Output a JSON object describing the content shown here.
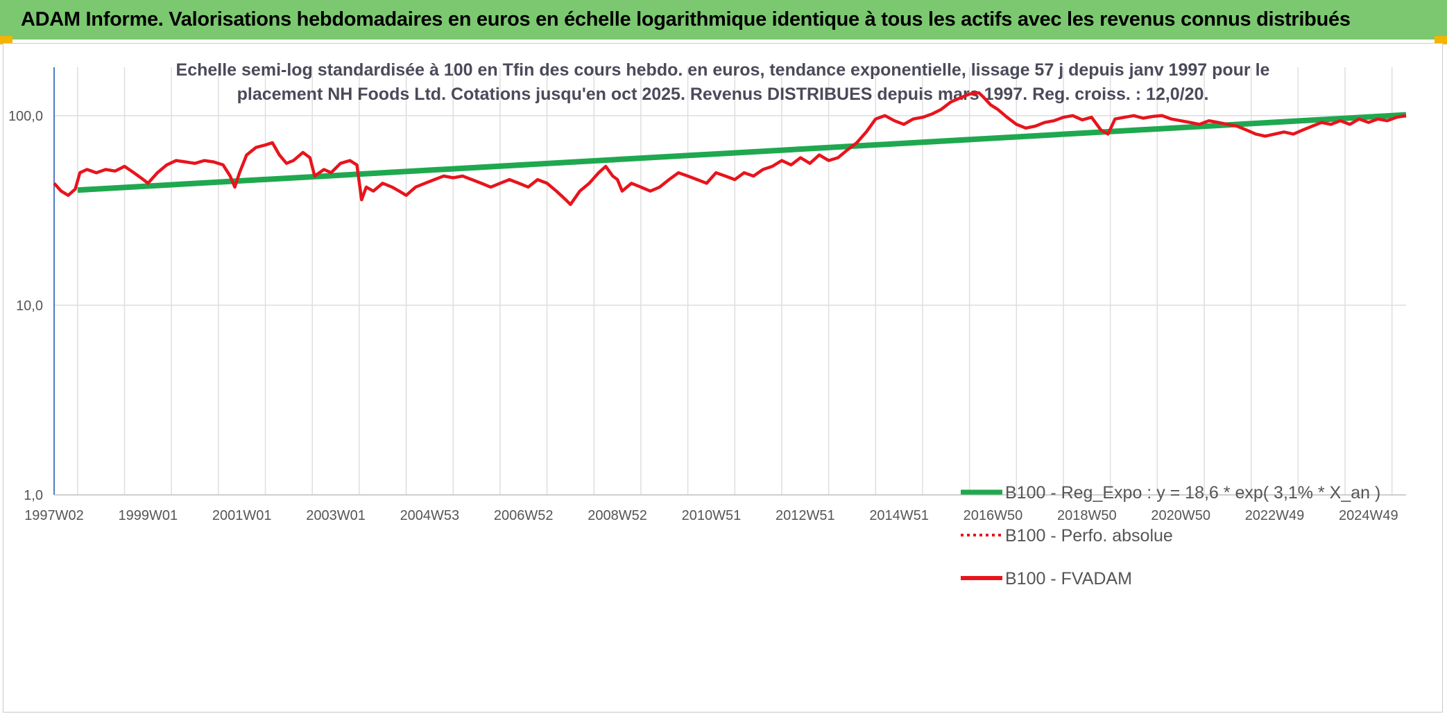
{
  "header": {
    "title": "ADAM Informe. Valorisations hebdomadaires en euros en échelle logarithmique identique à tous les actifs avec les revenus connus distribués"
  },
  "colors": {
    "header_bg": "#7bc870",
    "corner": "#f4b400",
    "regression": "#1fa84f",
    "fvadam": "#e8141c",
    "grid": "#dedede",
    "axis": "#4a7cc4"
  },
  "chart_data": {
    "type": "line",
    "y_scale": "log",
    "title_lines": [
      "Echelle semi-log standardisée à 100 en Tfin des cours hebdo. en euros, tendance exponentielle, lissage 57 j depuis janv 1997 pour le",
      "placement NH Foods Ltd. Cotations jusqu'en oct 2025. Revenus DISTRIBUES depuis mars 1997. Reg. croiss. : 12,0/20."
    ],
    "ylim": [
      1,
      180
    ],
    "y_ticks": [
      {
        "value": 1,
        "label": "1,0"
      },
      {
        "value": 10,
        "label": "10,0"
      },
      {
        "value": 100,
        "label": "100,0"
      }
    ],
    "xlim": [
      1997.0,
      2025.8
    ],
    "x_ticks": [
      {
        "t": 1997.0,
        "label": "1997W02"
      },
      {
        "t": 1999.0,
        "label": "1999W01"
      },
      {
        "t": 2001.0,
        "label": "2001W01"
      },
      {
        "t": 2003.0,
        "label": "2003W01"
      },
      {
        "t": 2005.0,
        "label": "2004W53"
      },
      {
        "t": 2007.0,
        "label": "2006W52"
      },
      {
        "t": 2009.0,
        "label": "2008W52"
      },
      {
        "t": 2011.0,
        "label": "2010W51"
      },
      {
        "t": 2013.0,
        "label": "2012W51"
      },
      {
        "t": 2015.0,
        "label": "2014W51"
      },
      {
        "t": 2017.0,
        "label": "2016W50"
      },
      {
        "t": 2019.0,
        "label": "2018W50"
      },
      {
        "t": 2021.0,
        "label": "2020W50"
      },
      {
        "t": 2023.0,
        "label": "2022W49"
      },
      {
        "t": 2025.0,
        "label": "2024W49"
      }
    ],
    "series": [
      {
        "name": "B100 - Reg_Expo : y = 18,6 * exp( 3,1% *  X_an )",
        "style": "solid-thick",
        "color": "#1fa84f",
        "points": [
          [
            1997.5,
            40.5
          ],
          [
            2025.8,
            101
          ]
        ]
      },
      {
        "name": "B100 - Perfo. absolue",
        "style": "dotted",
        "color": "#e8141c",
        "points": []
      },
      {
        "name": "B100 - FVADAM",
        "style": "solid",
        "color": "#e8141c",
        "points": [
          [
            1997.0,
            44
          ],
          [
            1997.15,
            40
          ],
          [
            1997.3,
            38
          ],
          [
            1997.45,
            41
          ],
          [
            1997.55,
            50
          ],
          [
            1997.7,
            52
          ],
          [
            1997.9,
            50
          ],
          [
            1998.1,
            52
          ],
          [
            1998.3,
            51
          ],
          [
            1998.5,
            54
          ],
          [
            1998.7,
            50
          ],
          [
            1998.9,
            46
          ],
          [
            1999.0,
            44
          ],
          [
            1999.2,
            50
          ],
          [
            1999.4,
            55
          ],
          [
            1999.6,
            58
          ],
          [
            1999.8,
            57
          ],
          [
            2000.0,
            56
          ],
          [
            2000.2,
            58
          ],
          [
            2000.4,
            57
          ],
          [
            2000.6,
            55
          ],
          [
            2000.75,
            48
          ],
          [
            2000.85,
            42
          ],
          [
            2000.95,
            50
          ],
          [
            2001.1,
            62
          ],
          [
            2001.3,
            68
          ],
          [
            2001.5,
            70
          ],
          [
            2001.65,
            72
          ],
          [
            2001.8,
            62
          ],
          [
            2001.95,
            56
          ],
          [
            2002.1,
            58
          ],
          [
            2002.3,
            64
          ],
          [
            2002.45,
            60
          ],
          [
            2002.55,
            48
          ],
          [
            2002.75,
            52
          ],
          [
            2002.9,
            50
          ],
          [
            2003.1,
            56
          ],
          [
            2003.3,
            58
          ],
          [
            2003.45,
            55
          ],
          [
            2003.55,
            36
          ],
          [
            2003.65,
            42
          ],
          [
            2003.8,
            40
          ],
          [
            2004.0,
            44
          ],
          [
            2004.2,
            42
          ],
          [
            2004.35,
            40
          ],
          [
            2004.5,
            38
          ],
          [
            2004.7,
            42
          ],
          [
            2004.9,
            44
          ],
          [
            2005.1,
            46
          ],
          [
            2005.3,
            48
          ],
          [
            2005.5,
            47
          ],
          [
            2005.7,
            48
          ],
          [
            2005.9,
            46
          ],
          [
            2006.1,
            44
          ],
          [
            2006.3,
            42
          ],
          [
            2006.5,
            44
          ],
          [
            2006.7,
            46
          ],
          [
            2006.9,
            44
          ],
          [
            2007.1,
            42
          ],
          [
            2007.3,
            46
          ],
          [
            2007.5,
            44
          ],
          [
            2007.7,
            40
          ],
          [
            2007.9,
            36
          ],
          [
            2008.0,
            34
          ],
          [
            2008.2,
            40
          ],
          [
            2008.4,
            44
          ],
          [
            2008.6,
            50
          ],
          [
            2008.75,
            54
          ],
          [
            2008.9,
            48
          ],
          [
            2009.0,
            46
          ],
          [
            2009.1,
            40
          ],
          [
            2009.3,
            44
          ],
          [
            2009.5,
            42
          ],
          [
            2009.7,
            40
          ],
          [
            2009.9,
            42
          ],
          [
            2010.1,
            46
          ],
          [
            2010.3,
            50
          ],
          [
            2010.5,
            48
          ],
          [
            2010.7,
            46
          ],
          [
            2010.9,
            44
          ],
          [
            2011.1,
            50
          ],
          [
            2011.3,
            48
          ],
          [
            2011.5,
            46
          ],
          [
            2011.7,
            50
          ],
          [
            2011.9,
            48
          ],
          [
            2012.1,
            52
          ],
          [
            2012.3,
            54
          ],
          [
            2012.5,
            58
          ],
          [
            2012.7,
            55
          ],
          [
            2012.9,
            60
          ],
          [
            2013.1,
            56
          ],
          [
            2013.3,
            62
          ],
          [
            2013.5,
            58
          ],
          [
            2013.7,
            60
          ],
          [
            2013.9,
            66
          ],
          [
            2014.1,
            72
          ],
          [
            2014.3,
            82
          ],
          [
            2014.5,
            96
          ],
          [
            2014.7,
            100
          ],
          [
            2014.9,
            94
          ],
          [
            2015.1,
            90
          ],
          [
            2015.3,
            96
          ],
          [
            2015.5,
            98
          ],
          [
            2015.7,
            102
          ],
          [
            2015.9,
            108
          ],
          [
            2016.1,
            118
          ],
          [
            2016.3,
            124
          ],
          [
            2016.5,
            130
          ],
          [
            2016.7,
            132
          ],
          [
            2016.8,
            125
          ],
          [
            2016.95,
            114
          ],
          [
            2017.1,
            108
          ],
          [
            2017.3,
            98
          ],
          [
            2017.5,
            90
          ],
          [
            2017.7,
            86
          ],
          [
            2017.9,
            88
          ],
          [
            2018.1,
            92
          ],
          [
            2018.3,
            94
          ],
          [
            2018.5,
            98
          ],
          [
            2018.7,
            100
          ],
          [
            2018.9,
            95
          ],
          [
            2019.1,
            98
          ],
          [
            2019.3,
            84
          ],
          [
            2019.45,
            80
          ],
          [
            2019.6,
            96
          ],
          [
            2019.8,
            98
          ],
          [
            2020.0,
            100
          ],
          [
            2020.2,
            97
          ],
          [
            2020.4,
            99
          ],
          [
            2020.6,
            100
          ],
          [
            2020.8,
            96
          ],
          [
            2021.0,
            94
          ],
          [
            2021.2,
            92
          ],
          [
            2021.4,
            90
          ],
          [
            2021.6,
            94
          ],
          [
            2021.8,
            92
          ],
          [
            2022.0,
            90
          ],
          [
            2022.2,
            88
          ],
          [
            2022.4,
            84
          ],
          [
            2022.6,
            80
          ],
          [
            2022.8,
            78
          ],
          [
            2023.0,
            80
          ],
          [
            2023.2,
            82
          ],
          [
            2023.4,
            80
          ],
          [
            2023.6,
            84
          ],
          [
            2023.8,
            88
          ],
          [
            2024.0,
            92
          ],
          [
            2024.2,
            90
          ],
          [
            2024.4,
            94
          ],
          [
            2024.6,
            90
          ],
          [
            2024.8,
            96
          ],
          [
            2025.0,
            92
          ],
          [
            2025.2,
            96
          ],
          [
            2025.4,
            94
          ],
          [
            2025.6,
            98
          ],
          [
            2025.8,
            100
          ]
        ]
      }
    ],
    "legend": {
      "position": "bottom-right",
      "entries": [
        "B100 - Reg_Expo : y = 18,6 * exp( 3,1% *  X_an )",
        "B100 - Perfo. absolue",
        "B100 - FVADAM"
      ]
    }
  }
}
